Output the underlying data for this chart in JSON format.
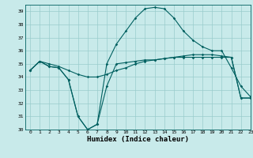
{
  "title": "",
  "xlabel": "Humidex (Indice chaleur)",
  "ylabel": "",
  "xlim": [
    -0.5,
    23
  ],
  "ylim": [
    30,
    39.5
  ],
  "yticks": [
    30,
    31,
    32,
    33,
    34,
    35,
    36,
    37,
    38,
    39
  ],
  "xticks": [
    0,
    1,
    2,
    3,
    4,
    5,
    6,
    7,
    8,
    9,
    10,
    11,
    12,
    13,
    14,
    15,
    16,
    17,
    18,
    19,
    20,
    21,
    22,
    23
  ],
  "bg_color": "#c8eaea",
  "line_color": "#006060",
  "grid_color": "#99cccc",
  "series": [
    [
      34.5,
      35.2,
      34.8,
      34.7,
      33.8,
      31.0,
      30.0,
      30.4,
      33.3,
      35.0,
      35.1,
      35.2,
      35.3,
      35.3,
      35.4,
      35.5,
      35.5,
      35.5,
      35.5,
      35.5,
      35.5,
      35.5,
      32.4,
      32.4
    ],
    [
      34.5,
      35.2,
      34.8,
      34.7,
      33.8,
      31.0,
      30.0,
      30.4,
      35.0,
      36.5,
      37.5,
      38.5,
      39.2,
      39.3,
      39.2,
      38.5,
      37.5,
      36.8,
      36.3,
      36.0,
      36.0,
      34.7,
      33.3,
      32.5
    ],
    [
      34.5,
      35.2,
      35.0,
      34.8,
      34.5,
      34.2,
      34.0,
      34.0,
      34.2,
      34.5,
      34.7,
      35.0,
      35.2,
      35.3,
      35.4,
      35.5,
      35.6,
      35.7,
      35.7,
      35.7,
      35.6,
      35.5,
      32.4,
      32.4
    ]
  ]
}
